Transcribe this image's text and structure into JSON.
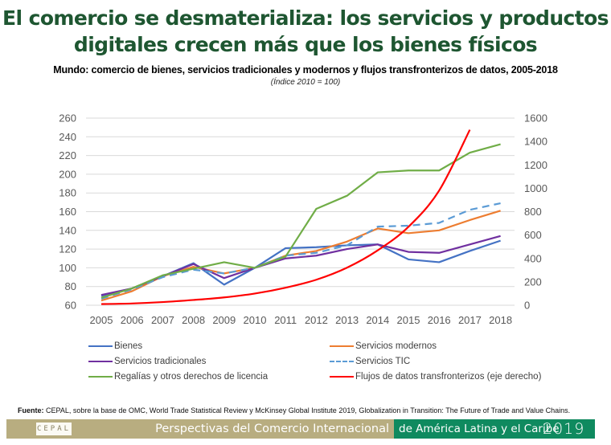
{
  "header": {
    "title_line1": "El comercio se desmaterializa: los servicios y productos",
    "title_line2": "digitales crecen más que los bienes físicos"
  },
  "chart_data": {
    "type": "line",
    "title": "Mundo: comercio de bienes, servicios tradicionales y modernos y flujos transfronterizos de datos, 2005-2018",
    "subtitle": "(Índice 2010 = 100)",
    "x": [
      "2005",
      "2006",
      "2007",
      "2008",
      "2009",
      "2010",
      "2011",
      "2012",
      "2013",
      "2014",
      "2015",
      "2016",
      "2017",
      "2018"
    ],
    "y_left": {
      "range": [
        60,
        260
      ],
      "ticks": [
        "60",
        "80",
        "100",
        "120",
        "140",
        "160",
        "180",
        "200",
        "220",
        "240",
        "260"
      ]
    },
    "y_right": {
      "range": [
        0,
        1600
      ],
      "ticks": [
        "0",
        "200",
        "400",
        "600",
        "800",
        "1000",
        "1200",
        "1400",
        "1600"
      ]
    },
    "grid": true,
    "legend_position": "bottom",
    "series": [
      {
        "name": "Bienes",
        "axis": "left",
        "color": "#4472c4",
        "dash": false,
        "values": [
          70,
          78,
          91,
          105,
          82,
          100,
          121,
          122,
          124,
          125,
          109,
          106,
          118,
          129
        ]
      },
      {
        "name": "Servicios modernos",
        "axis": "left",
        "color": "#ed7d31",
        "dash": false,
        "values": [
          65,
          75,
          91,
          101,
          94,
          100,
          113,
          118,
          128,
          142,
          137,
          140,
          151,
          161
        ]
      },
      {
        "name": "Servicios tradicionales",
        "axis": "left",
        "color": "#7030a0",
        "dash": false,
        "values": [
          71,
          78,
          91,
          104,
          89,
          100,
          110,
          113,
          120,
          125,
          117,
          116,
          125,
          134
        ]
      },
      {
        "name": "Servicios TIC",
        "axis": "left",
        "color": "#5b9bd5",
        "dash": true,
        "values": [
          67,
          77,
          90,
          98,
          94,
          100,
          113,
          116,
          124,
          144,
          145,
          148,
          162,
          169
        ]
      },
      {
        "name": "Regalías y otros derechos de licencia",
        "axis": "left",
        "color": "#70ad47",
        "dash": false,
        "values": [
          68,
          78,
          92,
          99,
          106,
          100,
          112,
          163,
          177,
          202,
          204,
          204,
          223,
          232
        ]
      },
      {
        "name": "Flujos de datos transfronterizos (eje derecho)",
        "axis": "right",
        "color": "#ff0000",
        "dash": false,
        "values": [
          10,
          15,
          27,
          45,
          67,
          100,
          150,
          218,
          321,
          469,
          670,
          980,
          1500,
          null
        ]
      }
    ]
  },
  "legend": [
    {
      "label": "Bienes",
      "color": "#4472c4",
      "dash": false
    },
    {
      "label": "Servicios modernos",
      "color": "#ed7d31",
      "dash": false
    },
    {
      "label": "Servicios tradicionales",
      "color": "#7030a0",
      "dash": false
    },
    {
      "label": "Servicios TIC",
      "color": "#5b9bd5",
      "dash": true
    },
    {
      "label": "Regalías y otros derechos de licencia",
      "color": "#70ad47",
      "dash": false
    },
    {
      "label": "Flujos de datos transfronterizos (eje derecho)",
      "color": "#ff0000",
      "dash": false
    }
  ],
  "source": {
    "label": "Fuente:",
    "text": " CEPAL, sobre la base de OMC, World Trade Statistical Review y McKinsey Global Institute 2019, Globalization in Transition: The Future of Trade and Value Chains."
  },
  "footer": {
    "logo": "CEPAL",
    "left_text": "Perspectivas del Comercio Internacional",
    "right_text": "de América Latina y el Caribe",
    "year": "2019",
    "colors": {
      "khaki": "#b8ad80",
      "green": "#0f8a5f"
    }
  }
}
